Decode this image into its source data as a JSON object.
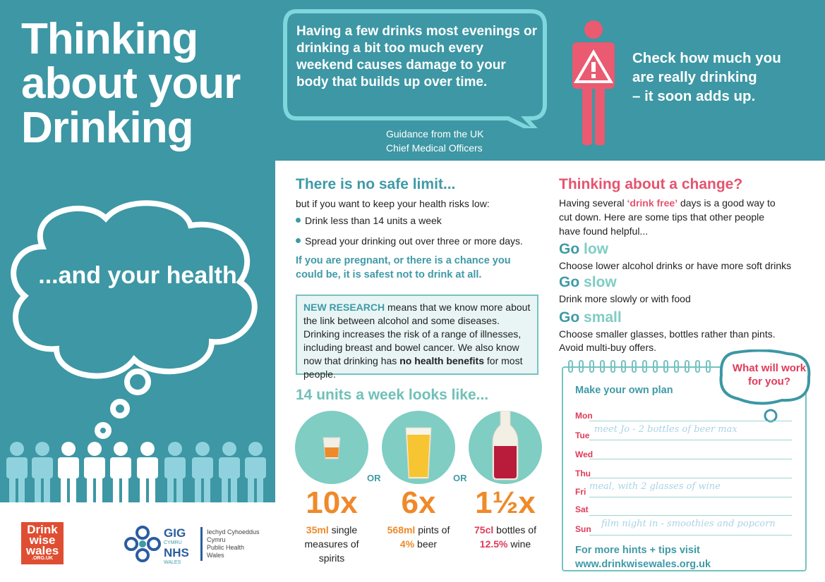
{
  "left": {
    "title_lines": [
      "Thinking",
      "about your",
      "Drinking"
    ],
    "health": "...and your health"
  },
  "top": {
    "quote": "Having a few drinks most evenings or drinking a bit too much every weekend causes damage to your body that builds up over time.",
    "guidance_lines": [
      "Guidance from the UK",
      "Chief Medical Officers"
    ],
    "check_lines": [
      "Check how much you",
      "are really drinking",
      "– it soon adds up."
    ]
  },
  "limit": {
    "heading": "There is no safe limit...",
    "sub": "but if you want to keep your health risks low:",
    "bullets": [
      "Drink less than 14 units a week",
      "Spread your drinking out over three or more days."
    ],
    "pregnant": "If you are pregnant, or there is a chance you could be, it is safest not to drink at all."
  },
  "research": {
    "lead": "NEW RESEARCH",
    "text1": " means that we know more about the link between alcohol and some diseases. Drinking increases the risk of a range of illnesses, including breast and bowel cancer. We also know now that drinking has ",
    "bold": "no health benefits",
    "text2": " for most people."
  },
  "units": {
    "heading": "14 units a week looks like...",
    "or": "OR",
    "items": [
      {
        "count": "10x",
        "amount": "35ml",
        "desc1": " single",
        "desc2": "measures of",
        "desc3": "spirits"
      },
      {
        "count": "6x",
        "amount": "568ml",
        "desc1": " pints of",
        "strength": "4%",
        "desc2": " beer"
      },
      {
        "count": "1½x",
        "amount": "75cl",
        "desc1": " bottles of",
        "strength": "12.5%",
        "desc2": " wine"
      }
    ]
  },
  "change": {
    "heading": "Thinking about a change?",
    "body1": "Having several ",
    "drinkfree": "‘drink free’",
    "body2": " days is a good way to cut down. Here are some tips that other people have found helpful...",
    "tips": [
      {
        "go": "Go",
        "word": "low",
        "text": "Choose lower alcohol drinks or have more soft drinks"
      },
      {
        "go": "Go",
        "word": "slow",
        "text": "Drink more slowly or with food"
      },
      {
        "go": "Go",
        "word": "small",
        "text": "Choose smaller glasses, bottles rather than pints. Avoid multi-buy offers."
      }
    ]
  },
  "plan": {
    "title": "Make your own plan",
    "bubble": "What will work for you?",
    "days": [
      "Mon",
      "Tue",
      "Wed",
      "Thu",
      "Fri",
      "Sat",
      "Sun"
    ],
    "notes": {
      "tue": "meet Jo - 2 bottles of beer max",
      "fri": "meal, with 2 glasses of wine",
      "sun": "film night in - smoothies and popcorn"
    },
    "more1": "For more hints + tips visit",
    "more2": "www.drinkwisewales.org.uk"
  },
  "logos": {
    "dww_lines": [
      "Drink",
      "wise",
      "wales"
    ],
    "dww_url": ".ORG.UK",
    "gig": "GIG",
    "cymru": "CYMRU",
    "nhs": "NHS",
    "wales": "WALES",
    "phw_lines": [
      "Iechyd Cyhoeddus",
      "Cymru",
      "Public Health",
      "Wales"
    ]
  },
  "colors": {
    "teal": "#3d97a4",
    "pink": "#e5546e",
    "orange": "#ee8a2a",
    "mint": "#7fcdc3"
  }
}
